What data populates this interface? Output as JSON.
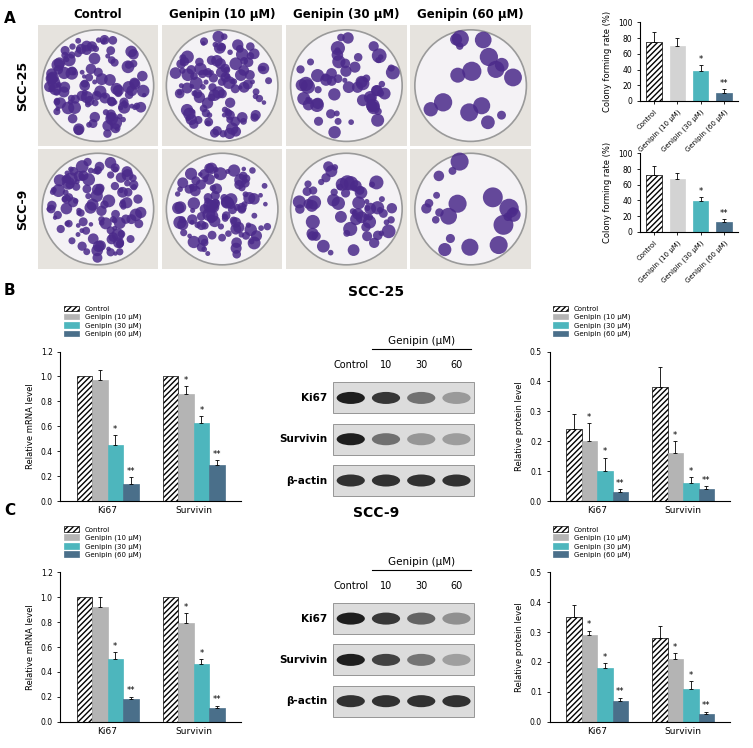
{
  "chart_data": [
    {
      "type": "bar",
      "ylabel": "Colony forming rate (%)",
      "categories": [
        "Control",
        "Genipin (10 μM)",
        "Genipin (30 μM)",
        "Genipin (60 μM)"
      ],
      "values": [
        75,
        70,
        38,
        10
      ],
      "errors": [
        13,
        10,
        8,
        5
      ],
      "significance": [
        null,
        null,
        "*",
        "**"
      ],
      "colors": [
        "#ffffff",
        "#d3d3d3",
        "#4db6bd",
        "#4a6f8a"
      ],
      "ylim": [
        0,
        100
      ],
      "yticks": [
        0,
        20,
        40,
        60,
        80,
        100
      ]
    },
    {
      "type": "bar",
      "ylabel": "Colony forming rate (%)",
      "categories": [
        "Control",
        "Genipin (10 μM)",
        "Genipin (30 μM)",
        "Genipin (60 μM)"
      ],
      "values": [
        72,
        67,
        39,
        13
      ],
      "errors": [
        12,
        8,
        6,
        4
      ],
      "significance": [
        null,
        null,
        "*",
        "**"
      ],
      "colors": [
        "#ffffff",
        "#d3d3d3",
        "#4db6bd",
        "#4a6f8a"
      ],
      "ylim": [
        0,
        100
      ],
      "yticks": [
        0,
        20,
        40,
        60,
        80,
        100
      ]
    },
    {
      "type": "bar",
      "ylabel": "Relative mRNA level",
      "categories": [
        "Ki67",
        "Survivin"
      ],
      "legend": "upper left",
      "series": [
        {
          "name": "Control",
          "color": "#ffffff",
          "values": [
            1.0,
            1.0
          ]
        },
        {
          "name": "Genipin (10 μM)",
          "color": "#b4b4b4",
          "values": [
            0.97,
            0.86
          ],
          "errors": [
            0.08,
            0.06
          ],
          "significance": [
            null,
            "*"
          ]
        },
        {
          "name": "Genipin (30 μM)",
          "color": "#4db6bd",
          "values": [
            0.45,
            0.63
          ],
          "errors": [
            0.08,
            0.05
          ],
          "significance": [
            "*",
            "*"
          ]
        },
        {
          "name": "Genipin (60 μM)",
          "color": "#4a6f8a",
          "values": [
            0.14,
            0.29
          ],
          "errors": [
            0.05,
            0.04
          ],
          "significance": [
            "**",
            "**"
          ]
        }
      ],
      "ylim": [
        0.0,
        1.2
      ],
      "yticks": [
        0.0,
        0.2,
        0.4,
        0.6,
        0.8,
        1.0,
        1.2
      ]
    },
    {
      "type": "bar",
      "ylabel": "Relative protein level",
      "categories": [
        "Ki67",
        "Survivin"
      ],
      "legend": "upper left",
      "series": [
        {
          "name": "Control",
          "color": "#ffffff",
          "values": [
            0.24,
            0.38
          ],
          "errors": [
            0.05,
            0.07
          ]
        },
        {
          "name": "Genipin (10 μM)",
          "color": "#b4b4b4",
          "values": [
            0.2,
            0.16
          ],
          "errors": [
            0.06,
            0.04
          ],
          "significance": [
            "*",
            "*"
          ]
        },
        {
          "name": "Genipin (30 μM)",
          "color": "#4db6bd",
          "values": [
            0.1,
            0.06
          ],
          "errors": [
            0.045,
            0.02
          ],
          "significance": [
            "*",
            "*"
          ]
        },
        {
          "name": "Genipin (60 μM)",
          "color": "#4a6f8a",
          "values": [
            0.03,
            0.04
          ],
          "errors": [
            0.01,
            0.01
          ],
          "significance": [
            "**",
            "**"
          ]
        }
      ],
      "ylim": [
        0.0,
        0.5
      ],
      "yticks": [
        0.0,
        0.1,
        0.2,
        0.3,
        0.4,
        0.5
      ]
    },
    {
      "type": "bar",
      "ylabel": "Relative mRNA level",
      "categories": [
        "Ki67",
        "Survivin"
      ],
      "legend": "upper left",
      "series": [
        {
          "name": "Control",
          "color": "#ffffff",
          "values": [
            1.0,
            1.0
          ]
        },
        {
          "name": "Genipin (10 μM)",
          "color": "#b4b4b4",
          "values": [
            0.92,
            0.79
          ],
          "errors": [
            0.08,
            0.08
          ],
          "significance": [
            null,
            "*"
          ]
        },
        {
          "name": "Genipin (30 μM)",
          "color": "#4db6bd",
          "values": [
            0.5,
            0.46
          ],
          "errors": [
            0.06,
            0.04
          ],
          "significance": [
            "*",
            "*"
          ]
        },
        {
          "name": "Genipin (60 μM)",
          "color": "#4a6f8a",
          "values": [
            0.18,
            0.11
          ],
          "errors": [
            0.02,
            0.02
          ],
          "significance": [
            "**",
            "**"
          ]
        }
      ],
      "ylim": [
        0.0,
        1.2
      ],
      "yticks": [
        0.0,
        0.2,
        0.4,
        0.6,
        0.8,
        1.0,
        1.2
      ]
    },
    {
      "type": "bar",
      "ylabel": "Relative protein level",
      "categories": [
        "Ki67",
        "Survivin"
      ],
      "legend": "upper left",
      "series": [
        {
          "name": "Control",
          "color": "#ffffff",
          "values": [
            0.35,
            0.28
          ],
          "errors": [
            0.04,
            0.04
          ]
        },
        {
          "name": "Genipin (10 μM)",
          "color": "#b4b4b4",
          "values": [
            0.29,
            0.21
          ],
          "errors": [
            0.015,
            0.02
          ],
          "significance": [
            "*",
            "*"
          ]
        },
        {
          "name": "Genipin (30 μM)",
          "color": "#4db6bd",
          "values": [
            0.18,
            0.11
          ],
          "errors": [
            0.015,
            0.025
          ],
          "significance": [
            "*",
            "*"
          ]
        },
        {
          "name": "Genipin (60 μM)",
          "color": "#4a6f8a",
          "values": [
            0.07,
            0.025
          ],
          "errors": [
            0.01,
            0.008
          ],
          "significance": [
            "**",
            "**"
          ]
        }
      ],
      "ylim": [
        0.0,
        0.5
      ],
      "yticks": [
        0.0,
        0.1,
        0.2,
        0.3,
        0.4,
        0.5
      ]
    }
  ],
  "panel_labels": [
    "A",
    "B",
    "C"
  ],
  "colony_plates": {
    "columns": [
      "Control",
      "Genipin (10 μM)",
      "Genipin (30 μM)",
      "Genipin (60 μM)"
    ],
    "rows": [
      "SCC-25",
      "SCC-9"
    ]
  },
  "western_blots": [
    {
      "cell_line": "SCC-25",
      "header": "Genipin (μM)",
      "lanes": [
        "Control",
        "10",
        "30",
        "60"
      ],
      "proteins": [
        "Ki67",
        "Survivin",
        "β-actin"
      ]
    },
    {
      "cell_line": "SCC-9",
      "header": "Genipin (μM)",
      "lanes": [
        "Control",
        "10",
        "30",
        "60"
      ],
      "proteins": [
        "Ki67",
        "Survivin",
        "β-actin"
      ]
    }
  ]
}
